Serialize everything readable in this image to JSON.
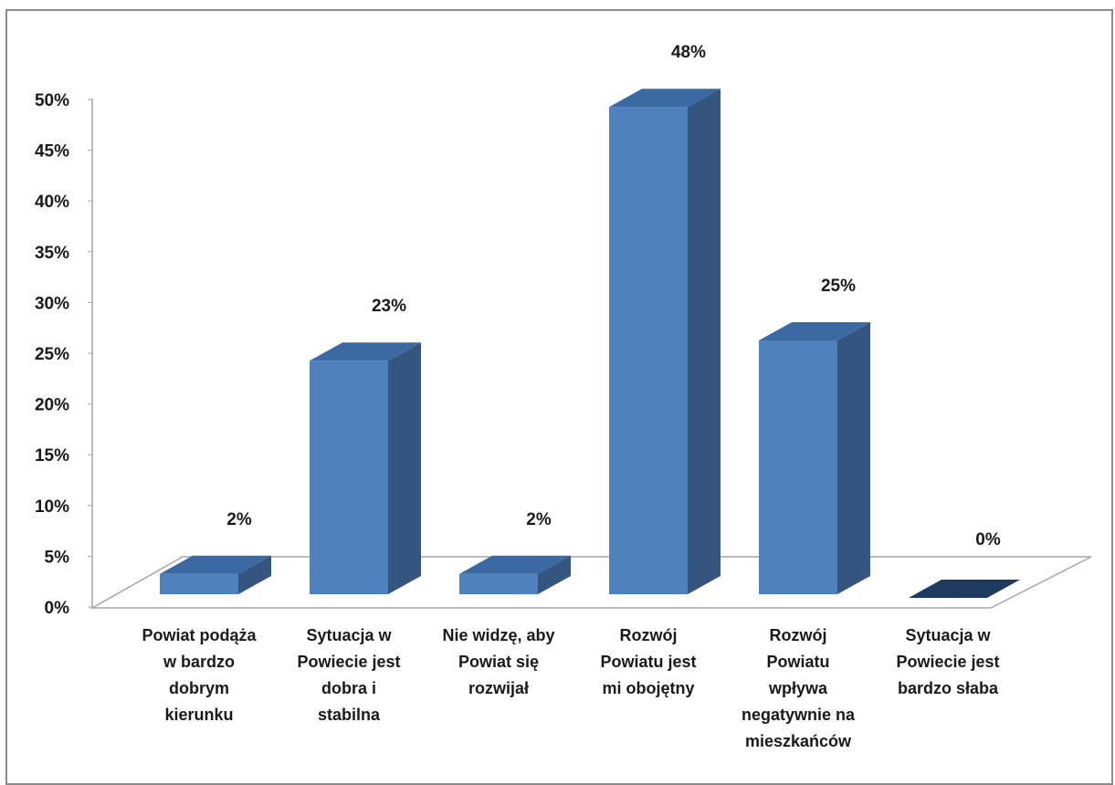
{
  "chart_data": {
    "type": "bar",
    "title": "",
    "xlabel": "",
    "ylabel": "",
    "ylim": [
      0,
      50
    ],
    "y_ticks": [
      "0%",
      "5%",
      "10%",
      "15%",
      "20%",
      "25%",
      "30%",
      "35%",
      "40%",
      "45%",
      "50%"
    ],
    "categories": [
      [
        "Powiat podąża",
        "w bardzo",
        "dobrym",
        "kierunku"
      ],
      [
        "Sytuacja w",
        "Powiecie jest",
        "dobra i",
        "stabilna"
      ],
      [
        "Nie widzę, aby",
        "Powiat się",
        "rozwijał"
      ],
      [
        "Rozwój",
        "Powiatu jest",
        "mi obojętny"
      ],
      [
        "Rozwój",
        "Powiatu",
        "wpływa",
        "negatywnie na",
        "mieszkańców"
      ],
      [
        "Sytuacja w",
        "Powiecie jest",
        "bardzo słaba"
      ]
    ],
    "values": [
      2,
      23,
      2,
      48,
      25,
      0
    ],
    "data_labels": [
      "2%",
      "23%",
      "2%",
      "48%",
      "25%",
      "0%"
    ],
    "style": "3d-column",
    "colors": {
      "front": "#4f81bd",
      "side": "#34557f",
      "top": "#3b6aa3",
      "zero_bar": "#1f3a5f",
      "floor_line": "#a6a6a6"
    },
    "grid": false,
    "legend": "none"
  }
}
